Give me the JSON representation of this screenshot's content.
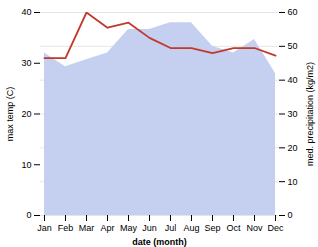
{
  "chart_data": {
    "type": "line",
    "categories": [
      "Jan",
      "Feb",
      "Mar",
      "Apr",
      "May",
      "Jun",
      "Jul",
      "Aug",
      "Sep",
      "Oct",
      "Nov",
      "Dec"
    ],
    "series": [
      {
        "type": "area",
        "axis": "y2",
        "color": "#c5cff0",
        "values": [
          48,
          44,
          46,
          48,
          55,
          55,
          57,
          57,
          50,
          48,
          52,
          42
        ]
      },
      {
        "type": "line",
        "color": "#c0392b",
        "values": [
          31,
          31,
          40,
          37,
          38,
          35,
          33,
          33,
          32,
          33,
          33,
          31.5
        ]
      }
    ],
    "xlabel": "date (month)",
    "ylabel": "max temp (C)",
    "y2label": "med. precipitation (kg/m2)",
    "ylim": [
      0,
      40
    ],
    "yticks": [
      0,
      10,
      20,
      30,
      40
    ],
    "y2lim": [
      0,
      60
    ],
    "y2ticks": [
      0,
      10,
      20,
      30,
      40,
      50,
      60
    ],
    "grid": true
  }
}
